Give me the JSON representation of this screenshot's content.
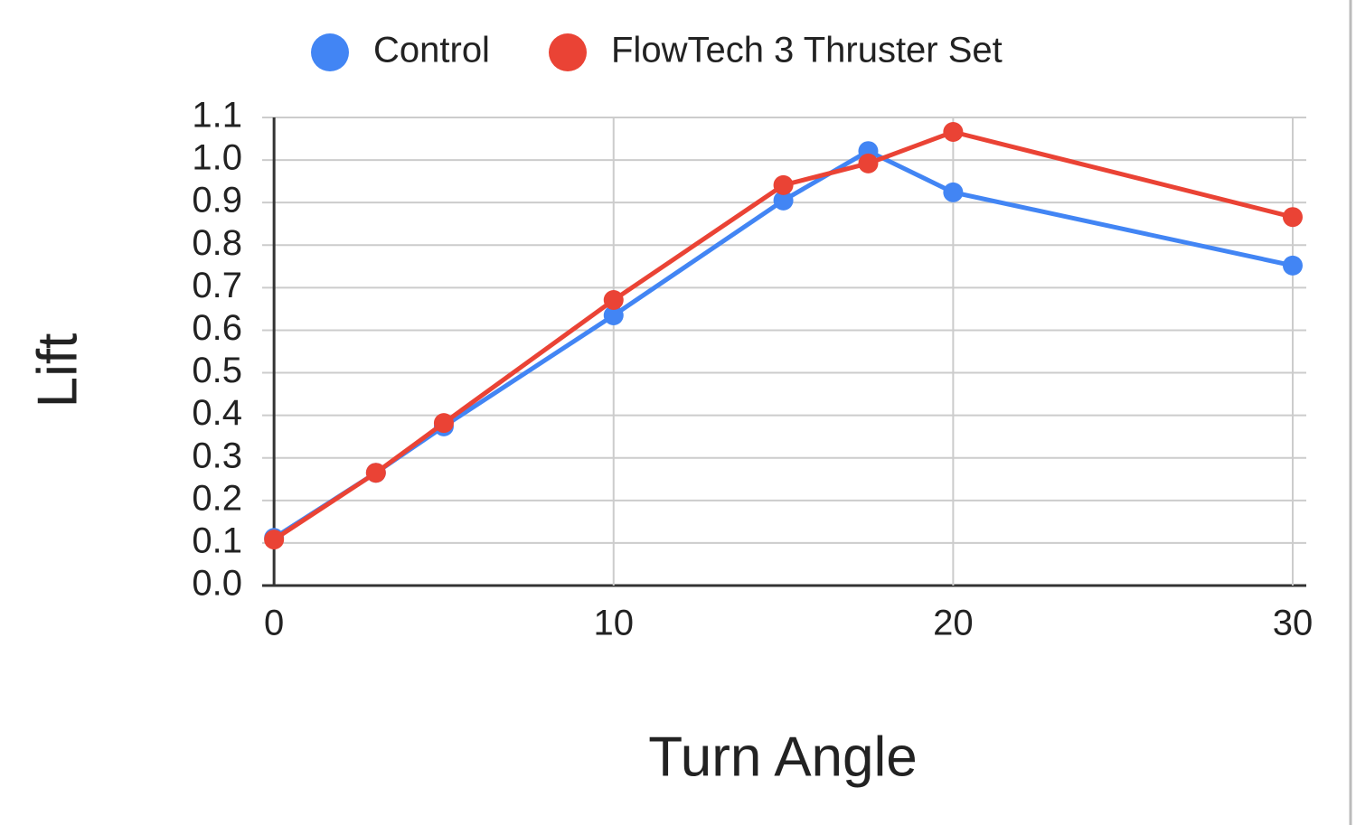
{
  "chart_data": {
    "type": "line",
    "x_label": "Turn Angle",
    "y_label": "Lift",
    "series": [
      {
        "name": "Control",
        "color": "#4285f4",
        "x": [
          0,
          3,
          5,
          10,
          15,
          17.5,
          20,
          30
        ],
        "values": [
          0.112,
          0.265,
          0.374,
          0.635,
          0.905,
          1.021,
          0.924,
          0.752
        ]
      },
      {
        "name": "FlowTech 3 Thruster Set",
        "color": "#ea4335",
        "x": [
          0,
          3,
          5,
          10,
          15,
          17.5,
          20,
          30
        ],
        "values": [
          0.108,
          0.265,
          0.382,
          0.671,
          0.941,
          0.992,
          1.066,
          0.866
        ]
      }
    ],
    "xlim": [
      -0.35,
      30.4
    ],
    "xticks": [
      0,
      10,
      20,
      30
    ],
    "ylim": [
      0,
      1.1
    ],
    "yticks": [
      {
        "value": 0,
        "label": "0.0"
      },
      0.1,
      0.2,
      0.3,
      0.4,
      0.5,
      0.6,
      0.7,
      0.8,
      0.9,
      {
        "value": 1,
        "label": "1.0"
      },
      1.1
    ],
    "grid": true,
    "legend": "top"
  }
}
